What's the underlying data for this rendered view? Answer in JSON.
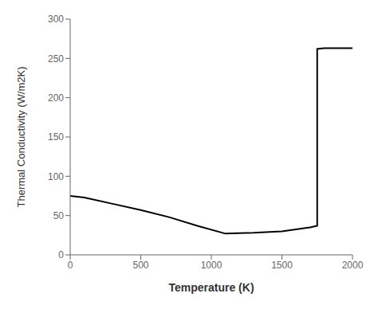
{
  "chart_data": {
    "type": "line",
    "x": [
      0,
      100,
      300,
      500,
      700,
      900,
      1100,
      1300,
      1500,
      1700,
      1750,
      1750,
      1800,
      1900,
      2000
    ],
    "values": [
      75,
      73,
      65,
      57,
      48,
      37,
      27,
      28,
      30,
      35,
      37,
      262,
      263,
      263,
      263
    ],
    "xlabel": "Temperature (K)",
    "ylabel": "Thermal Conductivity (W/m2K)",
    "xlim": [
      0,
      2000
    ],
    "ylim": [
      0,
      300
    ],
    "xticks": [
      0,
      500,
      1000,
      1500,
      2000
    ],
    "yticks": [
      0,
      50,
      100,
      150,
      200,
      250,
      300
    ],
    "color": "#000000"
  }
}
